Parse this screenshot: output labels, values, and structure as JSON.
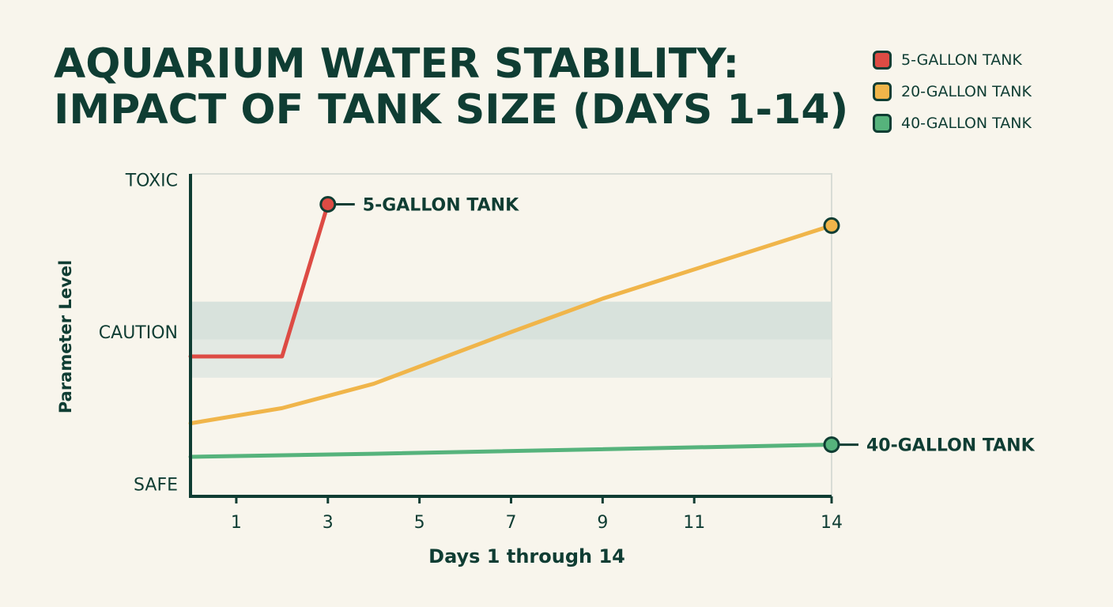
{
  "title_lines": [
    "AQUARIUM WATER STABILITY:",
    "IMPACT OF TANK SIZE (DAYS 1-14)"
  ],
  "legend": [
    {
      "label": "5-GALLON TANK",
      "color": "#dd4b44"
    },
    {
      "label": "20-GALLON TANK",
      "color": "#f0b54a"
    },
    {
      "label": "40-GALLON TANK",
      "color": "#56b37c"
    }
  ],
  "chart_data": {
    "type": "line",
    "title": "AQUARIUM WATER STABILITY: IMPACT OF TANK SIZE (DAYS 1-14)",
    "xlabel": "Days 1 through 14",
    "ylabel": "Parameter Level",
    "x_ticks": [
      "1",
      "3",
      "5",
      "7",
      "9",
      "11",
      "14"
    ],
    "xlim": [
      0,
      14
    ],
    "y_tick_labels": [
      {
        "label": "SAFE",
        "value": 0
      },
      {
        "label": "CAUTION",
        "value": 5
      },
      {
        "label": "TOXIC",
        "value": 10
      }
    ],
    "ylim": [
      -0.4,
      10.2
    ],
    "caution_band": [
      3.5,
      6.0
    ],
    "grid": false,
    "legend_position": "top-right",
    "series": [
      {
        "name": "5-GALLON TANK",
        "color": "#dd4b44",
        "x": [
          0,
          2,
          3
        ],
        "y": [
          4.2,
          4.2,
          9.2
        ],
        "end_label": "5-GALLON TANK"
      },
      {
        "name": "20-GALLON TANK",
        "color": "#f0b54a",
        "x": [
          0,
          2,
          4,
          7,
          9,
          14
        ],
        "y": [
          2.0,
          2.5,
          3.3,
          5.0,
          6.1,
          8.5
        ],
        "end_label": ""
      },
      {
        "name": "40-GALLON TANK",
        "color": "#56b37c",
        "x": [
          0,
          4,
          14
        ],
        "y": [
          0.9,
          1.0,
          1.3
        ],
        "end_label": "40-GALLON TANK"
      }
    ]
  }
}
